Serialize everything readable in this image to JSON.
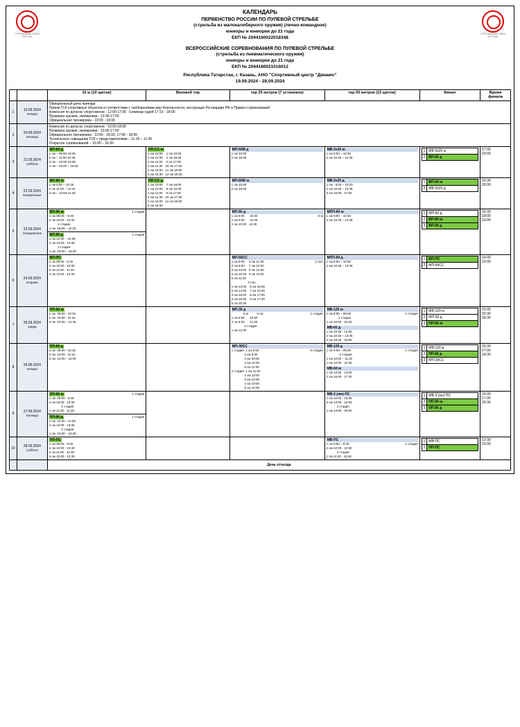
{
  "header": {
    "l1": "КАЛЕНДАРЬ",
    "l2": "ПЕРВЕНСТВО РОССИИ ПО ПУЛЕВОЙ СТРЕЛЬБЕ",
    "l3": "(стрельба из малокалиберного оружия) (лично-командное)",
    "l4": "юниоры и юниорки до 21 года",
    "l5": "ЕКП № 2044160022018348",
    "l6": "ВСЕРОССИЙСКИЕ СОРЕВНОВАНИЯ ПО ПУЛЕВОЙ СТРЕЛЬБЕ",
    "l7": "(стрельба из пневматического оружия)",
    "l8": "юниоры и юниорки до 21 года",
    "l9": "ЕКП № 2044160021016012",
    "l10": "Республика Татарстан, г. Казань, АНО \"Спортивный центр \"Динамо\"",
    "l11": "19.09.2024 - 28.09.2024"
  },
  "columns": {
    "c1": "10 м (10 щитов)",
    "c2": "Вязовой тир",
    "c3": "тир 25 метров (7 установок)",
    "c4": "тир 50 метров (15 щитов)",
    "c5": "Финал",
    "c6": "Время финала"
  },
  "rows": [
    {
      "n": "1",
      "date": "19.09.2024",
      "dow": "четверг",
      "full": "Официальный день приезда\nПрием ГСК спортивных объектов в соответствии с требованиями мер безопасности, инструкции Росгвардии РФ и Правил соревнований\nКомиссия по допуску спортсменов - 12:00-17:00   Семинар судей 17:15 - 18:00\nПроверка оружия, экипировки - 12:00-17:00\nОфициальная тренировка - 10:00 - 18:00"
    },
    {
      "n": "2",
      "date": "20.09.2024",
      "dow": "пятница",
      "full": "Комиссия по допуску спортсменов - 10:00-18:00\nПроверка оружия, экипировки - 10:00-17:00\nОфициальная тренировка - 10:00 - 18:00, 17:00 - 18:00\nТехническое совещание ГСК с представителями – 11:15 – 11:45\nОткрытие соревнований – 16:00 – 16:30"
    },
    {
      "n": "3",
      "date": "21.09.2024",
      "dow": "суббота",
      "a": {
        "title": "ВП-60 д",
        "lines": [
          "1 см – 09:00-10:45",
          "2 см – 11:00-12:45",
          "3 см – 13:00-14:45",
          "4 см – 15:00 – 16:45"
        ]
      },
      "b": {
        "title": "ПП-СС ю",
        "lines": [
          "1 см 10:00    1 см 16:00",
          "2 см 10:30    2 см 16:30",
          "3 см 11:00    3 см 17:00",
          "4 см 11:30   10 см 17:30",
          "5 см 15:00   11 см 18:00",
          "6 см 15:30   12 см 18:30"
        ]
      },
      "c": {
        "title": "МП-60М д",
        "lines": [
          "1 см 10:00",
          "2 см 18:30"
        ]
      },
      "d": {
        "title": "МВ-3х20 ю",
        "lines": [
          "1 см 9:00 – 10:30",
          "2 см 10:45 – 12:45"
        ]
      },
      "f": [
        [
          "1",
          "МВ-3х20 ю",
          ""
        ],
        [
          "2",
          "ВП-60 д",
          "grn"
        ]
      ],
      "t": [
        "17:00",
        "19:00"
      ]
    },
    {
      "n": "4",
      "date": "22.09.2024",
      "dow": "воскресенье",
      "a": {
        "title": "ВП-60 ю",
        "lines": [
          "1 см 9:00 – 10:15",
          "2 см 11:00 – 12:15",
          "3 см – 13:00-14:45"
        ]
      },
      "b": {
        "title": "ПП-СС д",
        "lines": [
          "1 см 10:00    7 см 16:00",
          "2 см 10:30    8 см 16:30",
          "3 см 11:00    9 см 17:00",
          "4 см 11:30   10 см 17:30",
          "5 см 15:00   11 см 18:00",
          "6 см 15:30"
        ]
      },
      "c": {
        "title": "МП-60М ю",
        "lines": [
          "1 см 10:00",
          "2 см 18:30"
        ]
      },
      "d": {
        "title": "МВ-3х20 д",
        "lines": [
          "1 см - 9:00 – 10:30",
          "2 см 10:45 – 12:45",
          "3 см 16:00 - 17:00"
        ]
      },
      "f": [
        [
          "1",
          "ВП-60 ю",
          "grn"
        ],
        [
          "2",
          "МВ-3х20 д",
          ""
        ]
      ],
      "t": [
        "16:30",
        "18:00"
      ]
    },
    {
      "n": "5",
      "date": "23.09.2024",
      "dow": "понедельник",
      "aa": {
        "title": "ВП-90 ю",
        "sub": "1 стадия",
        "lines": [
          "1 см 09:00 – 9:30",
          "2 см 10:00 - 10:30",
          "          2 стадия",
          "1 см  18:00 – 11:20"
        ]
      },
      "ab": {
        "title": "ВП-90 д",
        "sub": "1 стадия",
        "lines": [
          "1 см 12:00 – 12:30",
          "2 см 13:00 - 13:30",
          "          2 стадия",
          "1 см  15:00 – 15:30"
        ]
      },
      "c": {
        "title": "МП-60 д",
        "sub": "6 м",
        "lines": [
          "1 см 9:00      10:30",
          "2 см 9:30      11:00",
          "2 см 10:00   12:00"
        ]
      },
      "d": {
        "title": "МПП-60 ю",
        "lines": [
          "1 см 9:00 – 10:30",
          "2 см 10:30 – 12:45"
        ]
      },
      "f": [
        [
          "1",
          "МП-60 д",
          ""
        ],
        [
          "2",
          "ВП-90 ю",
          "grn"
        ],
        [
          "3",
          "ВП-90 д",
          "grn"
        ]
      ],
      "t": [
        "16:30",
        "18:00",
        "19:00"
      ]
    },
    {
      "n": "6",
      "date": "24.09.2024",
      "dow": "вторник",
      "a": {
        "title": "ВП-ПС",
        "lines": [
          "1 см 09:00 - 9:30",
          "2 см 10:00 - 10:30",
          "3 см 11:00 - 11:30",
          "4 см 12:00 - 12:30"
        ]
      },
      "c": {
        "title": "МП-60СС",
        "sub": "1 пол",
        "lines": [
          "1 см 9:00     6 см 11:30",
          "2 см 9:30     7 см 12:00",
          "3 см 10:00   8 см 12:30",
          "4 см 10:30   9 см 13:00",
          "5 см 11:00",
          "                   2 пол",
          "1 см 13:00    6 см 16:00",
          "2 см 14:00    7 см 16:30",
          "3 см 15:00    8 см 17:00",
          "4 см 15:00    9 см 17:30",
          "5 см 15:30"
        ]
      },
      "d": {
        "title": "МПП-60 д",
        "lines": [
          "1 см 9:00 – 10:30",
          "2 см 10:45 – 12:45"
        ]
      },
      "f": [
        [
          "1",
          "ВП-ПС",
          "grn"
        ],
        [
          "2",
          "МП-60СС",
          ""
        ]
      ],
      "t": [
        "14:00",
        "19:00"
      ]
    },
    {
      "n": "7",
      "date": "25.09.2024",
      "dow": "среда",
      "a": {
        "title": "ПП-60 ю",
        "lines": [
          "1 см  09:00 - 10:15",
          "2 см  10:00 - 11:15",
          "3 см  10:00 – 11:45"
        ]
      },
      "c": {
        "title": "МП-30 д",
        "sub": "1 стадия",
        "lines": [
          "              6 м          5 см",
          "1 см 9:00      10:30",
          "2 см 9:30      11:30",
          "               2 стадия",
          "1 см 13:30"
        ]
      },
      "d1": {
        "title": "МВ-120 ю",
        "sub": "1 стадия",
        "lines": [
          "1 см 9:00 – 09:30",
          "              2 стадия",
          "1 см 10:00 - 10:30"
        ]
      },
      "d2": {
        "title": "МВ-60 д",
        "lines": [
          "1 см 10:45 - 12:05",
          "2 см 10:45 – 13:45",
          "3 см 18:45 - 19:05"
        ]
      },
      "f": [
        [
          "1",
          "МВ-120 ю",
          ""
        ],
        [
          "2",
          "МП-30 д",
          ""
        ],
        [
          "3",
          "ПП-60 ю",
          "grn"
        ]
      ],
      "t": [
        "15:00",
        "16:30",
        "18:30"
      ]
    },
    {
      "n": "8",
      "date": "26.09.2024",
      "dow": "четверг",
      "a": {
        "title": "ПП-60 д",
        "lines": [
          "1 см  09:00 - 10:15",
          "2 см  10:00 - 11:15",
          "3 см  10:00 – 11:00"
        ]
      },
      "c": {
        "title": "МП-30СС",
        "sub": "5 стадии",
        "lines": [
          "1 стадия  1 см 9:00",
          "               2 см 9:30",
          "               3 см 10:00",
          "               4 см 10:30",
          "               5 см 11:00",
          "2 стадия  1 см 11:20",
          "               2 см 13:00",
          "               3 см 13:30",
          "               4 см 10:00",
          "               5 см 10:30"
        ]
      },
      "d1": {
        "title": "МВ-120 д",
        "sub": "1 стадия",
        "lines": [
          "1 см 9:00 – 09:30",
          "               2 стадия",
          "1 см 10:00 – 11:20",
          "1 см 12:00 - 12:30"
        ]
      },
      "d2": {
        "title": "МВ-60 ю",
        "lines": [
          "1 см 13:30 - 14:00",
          "2 см 16:00 - 17:30"
        ]
      },
      "f": [
        [
          "1",
          "МВ-120 д",
          ""
        ],
        [
          "2",
          "ПП-60 д",
          "grn"
        ],
        [
          "3",
          "МП-30СС",
          ""
        ]
      ],
      "t": [
        "15:30",
        "17:00",
        "18:30"
      ]
    },
    {
      "n": "9",
      "date": "27.09.2024",
      "dow": "пятница",
      "aa": {
        "title": "ПП-90 ю",
        "sub": "1 стадия",
        "lines": [
          "1 см  09:00 - 9:30",
          "2 см 10:00 - 10:30",
          "              2 стадия",
          "1 см 11:00 - 11:30"
        ]
      },
      "ab": {
        "title": "ПП-90 д",
        "sub": "1 стадия",
        "lines": [
          "1 см  12:00 - 12:30",
          "2 см 13:00 - 13:30",
          "              2 стадия",
          "1 см  15:00 – 15:30"
        ]
      },
      "d": {
        "title": "МВ-3 (ою) ПС",
        "lines": [
          "1 см 10:00 - 10:50",
          "2 см 13:00 - 13:50",
          "            2 стадия",
          "1 см 13:00 - 18:00"
        ]
      },
      "f": [
        [
          "1",
          "МВ-3 (ою) ПС",
          ""
        ],
        [
          "2",
          "ПП-90 ю",
          "grn"
        ],
        [
          "3",
          "ПП-90 д",
          "grn"
        ]
      ],
      "t": [
        "16:00",
        "17:00",
        "18:30"
      ]
    },
    {
      "n": "10",
      "date": "28.09.2024",
      "dow": "суббота",
      "a": {
        "title": "ПП-ПС",
        "lines": [
          "1 см 09:00 - 9:30",
          "2 см 10:00 - 10:30",
          "3 см 11:00 - 11:30",
          "4 см 12:00 - 12:30"
        ]
      },
      "d": {
        "title": "МВ-ПС",
        "sub": "1 стадия",
        "lines": [
          "1 см 9:00 – 9:30",
          "2 см 10:00 - 10:30",
          "            2 стадия",
          "1 см 11:00 - 11:50"
        ]
      },
      "f": [
        [
          "1",
          "МВ-ПС",
          ""
        ],
        [
          "2",
          "ПП-ПС",
          "grn"
        ]
      ],
      "t": [
        "13:30",
        "15:00"
      ]
    }
  ],
  "departure": "День отъезда"
}
